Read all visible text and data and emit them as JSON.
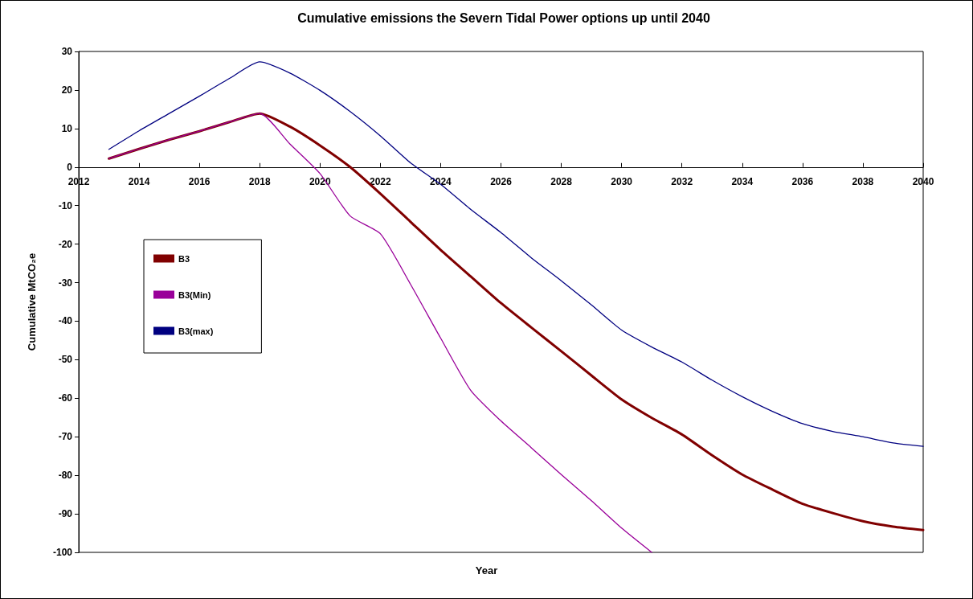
{
  "chart_data": {
    "type": "line",
    "title": "Cumulative emissions the Severn Tidal Power options up until 2040",
    "xlabel": "Year",
    "ylabel": "Cumulative MtCO₂e",
    "x": [
      2013,
      2014,
      2015,
      2016,
      2017,
      2018,
      2019,
      2020,
      2021,
      2022,
      2023,
      2024,
      2025,
      2026,
      2027,
      2028,
      2029,
      2030,
      2031,
      2032,
      2033,
      2034,
      2035,
      2036,
      2037,
      2038,
      2039,
      2040
    ],
    "series": [
      {
        "name": "B3",
        "color": "#800000",
        "values": [
          2.2,
          4.7,
          7.1,
          9.3,
          11.7,
          13.9,
          10.5,
          5.6,
          0,
          -6.9,
          -14.2,
          -21.5,
          -28.4,
          -35.3,
          -41.6,
          -47.8,
          -54.1,
          -60.3,
          -65.1,
          -69.4,
          -74.8,
          -79.8,
          -83.7,
          -87.4,
          -89.8,
          -91.9,
          -93.3,
          -94.2
        ]
      },
      {
        "name": "B3(Min)",
        "color": "#990099",
        "values": [
          2.2,
          4.7,
          7.1,
          9.3,
          11.7,
          13.9,
          6,
          -1.7,
          -12.7,
          -17.3,
          -30.4,
          -44.4,
          -58,
          -65.9,
          -72.8,
          -79.8,
          -86.6,
          -93.7,
          -100,
          null,
          null,
          null,
          null,
          null,
          null,
          null,
          null,
          null
        ]
      },
      {
        "name": "B3(max)",
        "color": "#000080",
        "values": [
          4.6,
          9.4,
          13.9,
          18.4,
          23,
          27.3,
          24.4,
          19.9,
          14.4,
          8.1,
          1.1,
          -4.5,
          -11,
          -17,
          -23.5,
          -29.5,
          -35.8,
          -42.3,
          -46.7,
          -50.6,
          -55.3,
          -59.6,
          -63.4,
          -66.6,
          -68.6,
          -70,
          -71.6,
          -72.5
        ]
      }
    ],
    "xlim": [
      2012,
      2040
    ],
    "xticks": [
      2012,
      2014,
      2016,
      2018,
      2020,
      2022,
      2024,
      2026,
      2028,
      2030,
      2032,
      2034,
      2036,
      2038,
      2040
    ],
    "ylim": [
      -100,
      30
    ],
    "yticks": [
      -100,
      -90,
      -80,
      -70,
      -60,
      -50,
      -40,
      -30,
      -20,
      -10,
      0,
      10,
      20,
      30
    ],
    "grid": false,
    "legend": "left",
    "marker": "none",
    "line_style": "solid"
  }
}
